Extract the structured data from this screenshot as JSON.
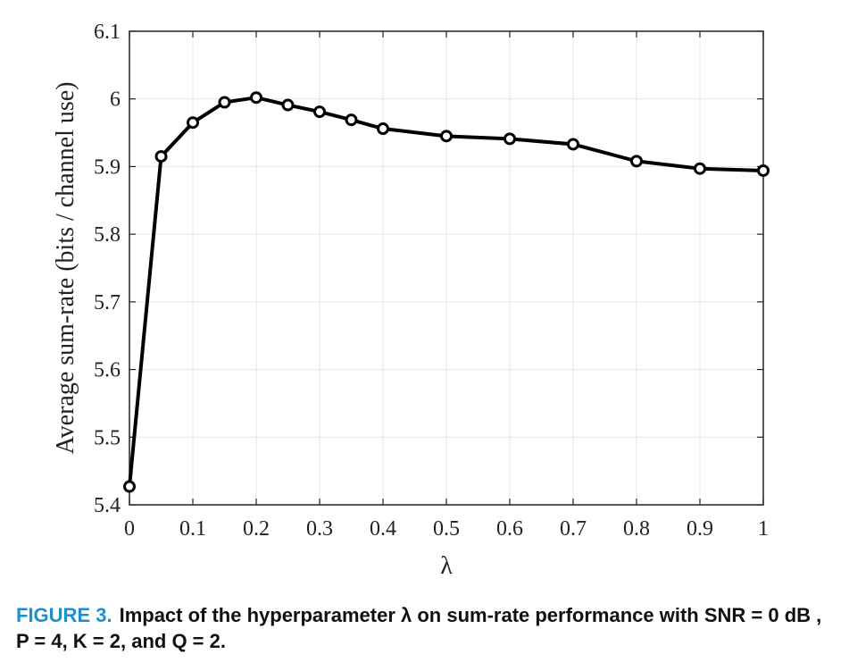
{
  "chart_data": {
    "type": "line",
    "xlabel": "λ",
    "ylabel": "Average sum-rate (bits / channel use)",
    "xlim": [
      0,
      1
    ],
    "ylim": [
      5.4,
      6.1
    ],
    "xticks": [
      "0",
      "0.1",
      "0.2",
      "0.3",
      "0.4",
      "0.5",
      "0.6",
      "0.7",
      "0.8",
      "0.9",
      "1"
    ],
    "yticks": [
      "5.4",
      "5.5",
      "5.6",
      "5.7",
      "5.8",
      "5.9",
      "6",
      "6.1"
    ],
    "grid": true,
    "series": [
      {
        "color": "#000000",
        "marker": "circle",
        "x": [
          0,
          0.05,
          0.1,
          0.15,
          0.2,
          0.25,
          0.3,
          0.35,
          0.4,
          0.5,
          0.6,
          0.7,
          0.8,
          0.9,
          1
        ],
        "y": [
          5.427,
          5.915,
          5.965,
          5.995,
          6.002,
          5.991,
          5.981,
          5.969,
          5.956,
          5.945,
          5.941,
          5.933,
          5.908,
          5.897,
          5.894
        ]
      }
    ]
  },
  "caption": {
    "label": "FIGURE 3.",
    "text": "Impact of the hyperparameter λ on sum-rate performance with SNR = 0 dB , P = 4, K = 2, and Q = 2."
  },
  "colors": {
    "caption_label": "#1d8fd0",
    "line": "#000000",
    "grid": "#e6e6e6"
  }
}
